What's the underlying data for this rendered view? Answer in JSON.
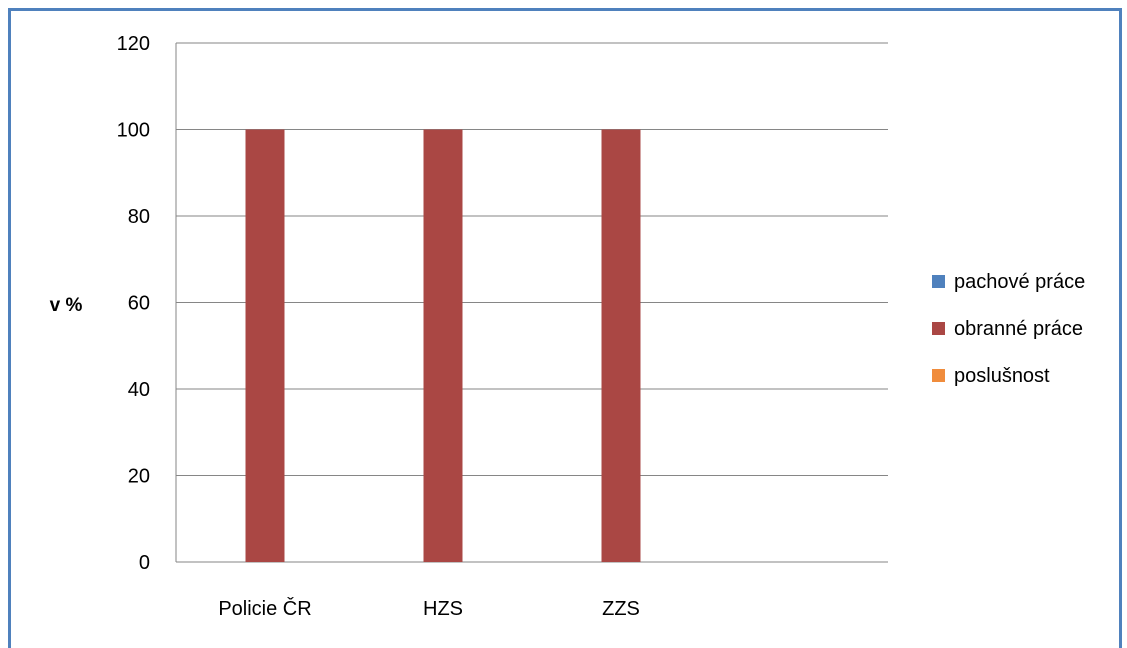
{
  "chart_data": {
    "type": "bar",
    "title": "",
    "xlabel": "",
    "ylabel": "v %",
    "ylim": [
      0,
      120
    ],
    "yticks": [
      0,
      20,
      40,
      60,
      80,
      100,
      120
    ],
    "categories": [
      "Policie ČR",
      "HZS",
      "ZZS",
      ""
    ],
    "series": [
      {
        "name": "pachové práce",
        "color": "#4f81bd",
        "values": [
          0,
          0,
          0,
          0
        ]
      },
      {
        "name": "obranné práce",
        "color": "#aa4744",
        "values": [
          100,
          100,
          100,
          0
        ]
      },
      {
        "name": "poslušnost",
        "color": "#f08c3c",
        "values": [
          0,
          0,
          0,
          0
        ]
      }
    ],
    "grid": true,
    "legend_position": "right"
  }
}
